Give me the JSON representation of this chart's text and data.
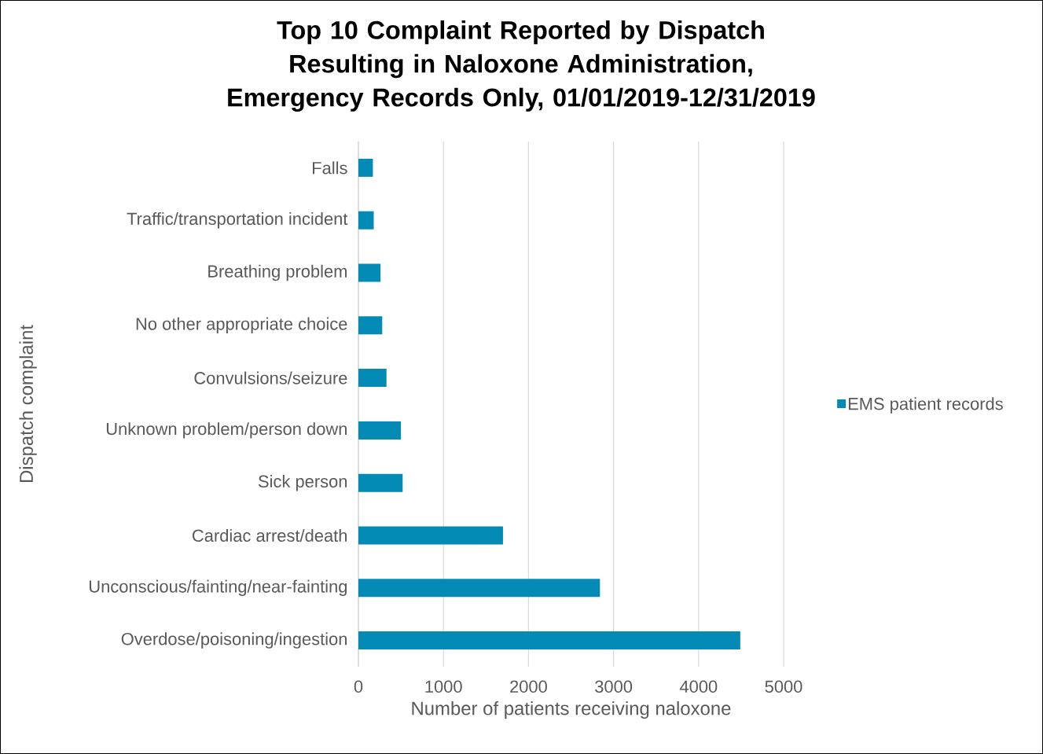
{
  "chart_data": {
    "type": "bar",
    "orientation": "horizontal",
    "title": "Top 10 Complaint Reported by Dispatch Resulting in Naloxone Administration, Emergency Records Only, 01/01/2019-12/31/2019",
    "xlabel": "Number of patients receiving naloxone",
    "ylabel": "Dispatch complaint",
    "categories": [
      "Falls",
      "Traffic/transportation incident",
      "Breathing problem",
      "No other appropriate choice",
      "Convulsions/seizure",
      "Unknown problem/person down",
      "Sick person",
      "Cardiac arrest/death",
      "Unconscious/fainting/near-fainting",
      "Overdose/poisoning/ingestion"
    ],
    "series": [
      {
        "name": "EMS patient records",
        "color": "#038ab5",
        "values": [
          170,
          180,
          260,
          280,
          330,
          500,
          520,
          1700,
          2840,
          4490
        ]
      }
    ],
    "xlim": [
      0,
      5000
    ],
    "xticks": [
      0,
      1000,
      2000,
      3000,
      4000,
      5000
    ],
    "grid": "x",
    "legend": "right"
  }
}
